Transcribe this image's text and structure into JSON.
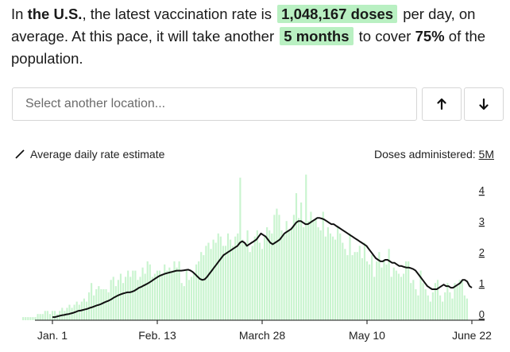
{
  "summary": {
    "prefix": "In ",
    "location": "the U.S.",
    "mid1": ", the latest vaccination rate is ",
    "rate": "1,048,167 doses",
    "mid2": " per day, on average. At this pace, it will take another ",
    "duration": "5 months",
    "mid3": " to cover ",
    "coverage": "75%",
    "suffix": " of the population."
  },
  "search": {
    "placeholder": "Select another location..."
  },
  "buttons": {
    "up_icon": "arrow-up-icon",
    "down_icon": "arrow-down-icon"
  },
  "legend": {
    "label": "Average daily rate estimate"
  },
  "doses_label": {
    "text": "Doses administered: ",
    "unit": "5M"
  },
  "colors": {
    "highlight": "#b9f0c2",
    "bar": "#c9f4cf",
    "line": "#111111"
  },
  "chart_data": {
    "type": "bar",
    "ylim": [
      0,
      5
    ],
    "y_unit": "M doses",
    "y_ticks": [
      "5M",
      "4",
      "3",
      "2",
      "1",
      "0"
    ],
    "x_ticks": [
      {
        "label": "Jan. 1",
        "day": 0
      },
      {
        "label": "Feb. 13",
        "day": 43
      },
      {
        "label": "March 28",
        "day": 86
      },
      {
        "label": "May 10",
        "day": 129
      },
      {
        "label": "June 22",
        "day": 172
      }
    ],
    "start_day": -12,
    "daily_doses_millions": [
      0.1,
      0.1,
      0.1,
      0.1,
      0.1,
      0.1,
      0.2,
      0.2,
      0.2,
      0.3,
      0.3,
      0.2,
      0.3,
      0.3,
      0.2,
      0.3,
      0.4,
      0.3,
      0.4,
      0.5,
      0.4,
      0.5,
      0.6,
      0.5,
      0.6,
      0.7,
      0.6,
      0.9,
      1.2,
      0.8,
      1.0,
      1.1,
      1.0,
      1.0,
      1.0,
      0.9,
      1.3,
      1.4,
      1.1,
      1.3,
      1.5,
      1.2,
      1.4,
      1.6,
      1.4,
      1.6,
      1.6,
      1.3,
      1.4,
      1.7,
      1.5,
      1.9,
      1.8,
      1.4,
      1.5,
      1.6,
      1.6,
      1.5,
      1.8,
      1.6,
      1.7,
      1.6,
      1.9,
      1.7,
      1.9,
      1.2,
      1.1,
      1.6,
      1.3,
      1.4,
      1.5,
      1.8,
      1.9,
      2.2,
      2.1,
      2.4,
      2.5,
      2.3,
      2.6,
      2.5,
      2.8,
      2.7,
      2.4,
      2.4,
      2.8,
      2.6,
      2.4,
      2.7,
      2.8,
      4.6,
      2.6,
      2.5,
      2.9,
      2.2,
      2.4,
      2.7,
      2.9,
      2.5,
      2.3,
      2.7,
      3.0,
      2.9,
      2.8,
      3.4,
      3.6,
      3.4,
      2.9,
      2.8,
      3.2,
      2.9,
      3.0,
      3.4,
      4.1,
      3.3,
      3.8,
      3.0,
      4.7,
      3.2,
      3.5,
      3.2,
      3.3,
      3.0,
      2.9,
      3.5,
      2.7,
      3.0,
      2.8,
      2.7,
      2.6,
      3.0,
      2.8,
      2.5,
      2.3,
      2.1,
      2.8,
      2.1,
      2.2,
      2.2,
      2.4,
      2.0,
      2.5,
      1.9,
      1.8,
      2.1,
      1.4,
      1.9,
      2.2,
      1.7,
      1.9,
      1.8,
      2.3,
      1.4,
      1.7,
      1.6,
      1.5,
      1.4,
      1.5,
      1.9,
      1.9,
      1.2,
      1.3,
      1.0,
      0.8,
      1.6,
      1.2,
      1.0,
      0.8,
      0.6,
      0.9,
      1.2,
      1.3,
      0.8,
      0.6,
      0.9,
      1.2,
      0.9,
      0.7,
      1.2,
      1.1,
      1.3,
      1.3,
      0.8,
      0.7
    ],
    "average_millions": [
      0.1,
      0.1,
      0.12,
      0.14,
      0.16,
      0.17,
      0.19,
      0.2,
      0.22,
      0.24,
      0.27,
      0.3,
      0.31,
      0.33,
      0.35,
      0.37,
      0.4,
      0.42,
      0.45,
      0.48,
      0.5,
      0.53,
      0.57,
      0.6,
      0.63,
      0.67,
      0.72,
      0.76,
      0.8,
      0.83,
      0.86,
      0.88,
      0.9,
      0.9,
      0.92,
      0.95,
      1.0,
      1.05,
      1.08,
      1.12,
      1.16,
      1.2,
      1.25,
      1.3,
      1.35,
      1.4,
      1.44,
      1.47,
      1.5,
      1.52,
      1.54,
      1.56,
      1.58,
      1.6,
      1.6,
      1.6,
      1.61,
      1.62,
      1.63,
      1.6,
      1.55,
      1.48,
      1.4,
      1.33,
      1.3,
      1.32,
      1.4,
      1.5,
      1.6,
      1.7,
      1.8,
      1.9,
      2.0,
      2.1,
      2.15,
      2.2,
      2.25,
      2.3,
      2.35,
      2.4,
      2.5,
      2.55,
      2.5,
      2.4,
      2.45,
      2.5,
      2.55,
      2.6,
      2.7,
      2.8,
      2.75,
      2.7,
      2.6,
      2.5,
      2.45,
      2.5,
      2.55,
      2.6,
      2.7,
      2.8,
      2.85,
      2.9,
      2.95,
      3.05,
      3.15,
      3.2,
      3.2,
      3.15,
      3.1,
      3.1,
      3.15,
      3.2,
      3.25,
      3.3,
      3.3,
      3.28,
      3.25,
      3.2,
      3.15,
      3.1,
      3.1,
      3.05,
      3.0,
      2.95,
      2.9,
      2.85,
      2.8,
      2.75,
      2.7,
      2.65,
      2.6,
      2.55,
      2.5,
      2.45,
      2.4,
      2.3,
      2.2,
      2.1,
      2.0,
      1.95,
      1.9,
      1.9,
      1.95,
      1.95,
      1.9,
      1.85,
      1.85,
      1.8,
      1.75,
      1.75,
      1.72,
      1.7,
      1.7,
      1.68,
      1.65,
      1.6,
      1.5,
      1.4,
      1.3,
      1.2,
      1.1,
      1.05,
      1.0,
      1.0,
      1.0,
      1.05,
      1.1,
      1.15,
      1.1,
      1.1,
      1.05,
      1.05,
      1.1,
      1.15,
      1.2,
      1.3,
      1.3,
      1.25,
      1.1,
      1.05
    ]
  }
}
